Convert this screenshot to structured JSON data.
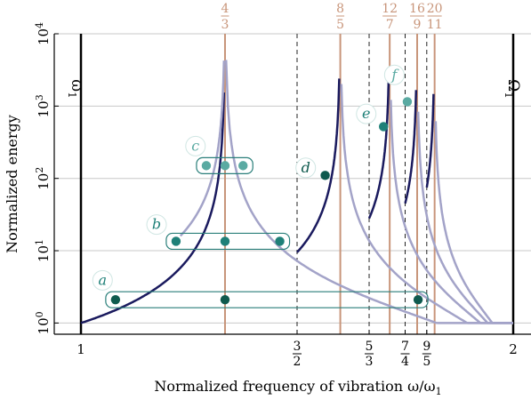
{
  "chart_data": {
    "type": "line",
    "title": "",
    "xlabel": "Normalized frequency of vibration ω/ω",
    "xlabel_sub": "1",
    "ylabel": "Normalized energy",
    "xlim": [
      1,
      2
    ],
    "ylim": [
      0.7,
      10000
    ],
    "yscale": "log",
    "grid": true,
    "colors": {
      "dark_curve": "#1a1a5e",
      "light_curve": "#a3a3c8",
      "resonance": "#c8957a",
      "point_dark": "#0f5a4e",
      "point_mid": "#1f8078",
      "point_light": "#5aaaa2",
      "grid": "#c8c8c8"
    },
    "x_ticks": [
      {
        "x": 1,
        "label": "1"
      },
      {
        "x": 1.5,
        "num": "3",
        "den": "2"
      },
      {
        "x": 1.6667,
        "num": "5",
        "den": "3"
      },
      {
        "x": 1.75,
        "num": "7",
        "den": "4"
      },
      {
        "x": 1.8,
        "num": "9",
        "den": "5"
      },
      {
        "x": 2,
        "label": "2"
      }
    ],
    "y_ticks": [
      {
        "value": 1,
        "base": "10",
        "exp": "0"
      },
      {
        "value": 10,
        "base": "10",
        "exp": "1"
      },
      {
        "value": 100,
        "base": "10",
        "exp": "2"
      },
      {
        "value": 1000,
        "base": "10",
        "exp": "3"
      },
      {
        "value": 10000,
        "base": "10",
        "exp": "4"
      }
    ],
    "resonances": [
      {
        "x": 1.3333,
        "num": "4",
        "den": "3"
      },
      {
        "x": 1.6,
        "num": "8",
        "den": "5"
      },
      {
        "x": 1.7143,
        "num": "12",
        "den": "7"
      },
      {
        "x": 1.7778,
        "num": "16",
        "den": "9"
      },
      {
        "x": 1.8182,
        "num": "20",
        "den": "11"
      }
    ],
    "dashed_lines": [
      1.5,
      1.6667,
      1.75,
      1.8
    ],
    "boundary_labels": [
      {
        "x": 1,
        "base": "ω",
        "sub": "1"
      },
      {
        "x": 2,
        "base": "Ω",
        "sub": "1"
      }
    ],
    "points": [
      {
        "x": 1.08,
        "y": 2.1,
        "shade": "dark"
      },
      {
        "x": 1.3333,
        "y": 2.1,
        "shade": "dark"
      },
      {
        "x": 1.78,
        "y": 2.1,
        "shade": "dark"
      },
      {
        "x": 1.22,
        "y": 13.5,
        "shade": "mid"
      },
      {
        "x": 1.3333,
        "y": 13.5,
        "shade": "mid"
      },
      {
        "x": 1.46,
        "y": 13.5,
        "shade": "mid"
      },
      {
        "x": 1.29,
        "y": 150,
        "shade": "light"
      },
      {
        "x": 1.3333,
        "y": 150,
        "shade": "light"
      },
      {
        "x": 1.375,
        "y": 150,
        "shade": "light"
      },
      {
        "x": 1.565,
        "y": 110,
        "shade": "dark"
      },
      {
        "x": 1.7,
        "y": 520,
        "shade": "mid"
      },
      {
        "x": 1.755,
        "y": 1150,
        "shade": "light"
      }
    ],
    "groups": [
      {
        "x_from": 1.08,
        "x_to": 1.78,
        "y": 2.1
      },
      {
        "x_from": 1.22,
        "x_to": 1.46,
        "y": 13.5
      },
      {
        "x_from": 1.29,
        "x_to": 1.375,
        "y": 150
      }
    ],
    "annotations": [
      {
        "label": "a",
        "x": 1.05,
        "y": 3.9,
        "shade": "mid"
      },
      {
        "label": "b",
        "x": 1.175,
        "y": 23,
        "shade": "mid"
      },
      {
        "label": "c",
        "x": 1.265,
        "y": 280,
        "shade": "light"
      },
      {
        "label": "d",
        "x": 1.52,
        "y": 140,
        "shade": "dark"
      },
      {
        "label": "e",
        "x": 1.66,
        "y": 780,
        "shade": "mid"
      },
      {
        "label": "f",
        "x": 1.725,
        "y": 2700,
        "shade": "light"
      }
    ]
  }
}
